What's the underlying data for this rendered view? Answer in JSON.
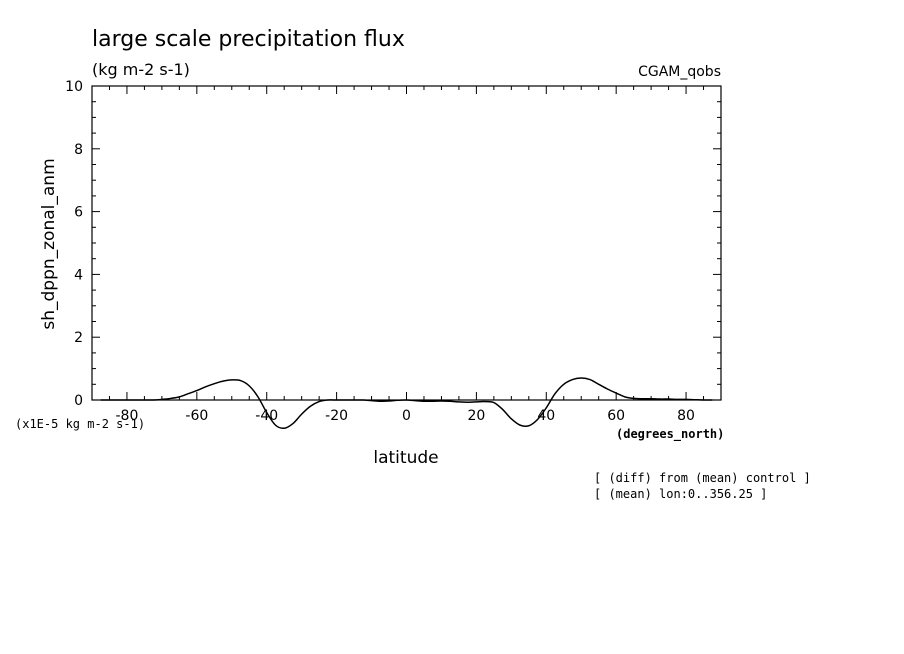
{
  "chart_data": {
    "type": "line",
    "title": "large scale precipitation flux",
    "subtitle": "(kg m-2 s-1)",
    "label_right": "CGAM_qobs",
    "xlabel": "latitude",
    "x_units": "(degrees_north)",
    "ylabel": "sh_dppn_zonal_anm",
    "y_scale_note": "(x1E-5 kg m-2 s-1)",
    "xlim": [
      -90,
      90
    ],
    "ylim": [
      0,
      10
    ],
    "x_ticks": [
      -80,
      -60,
      -40,
      -20,
      0,
      20,
      40,
      60,
      80
    ],
    "y_ticks": [
      0,
      2,
      4,
      6,
      8,
      10
    ],
    "grid": false,
    "notes": [
      "[ (diff) from (mean) control ]",
      "[ (mean) lon:0..356.25 ]"
    ],
    "series": [
      {
        "x": [
          -87.5,
          -82.5,
          -77.5,
          -72.5,
          -70,
          -67.5,
          -65,
          -62.5,
          -60,
          -57.5,
          -55,
          -52.5,
          -50,
          -47.5,
          -45,
          -42.5,
          -40,
          -37.5,
          -35,
          -32.5,
          -30,
          -27.5,
          -25,
          -22.5,
          -20,
          -17.5,
          -15,
          -12.5,
          -10,
          -7.5,
          -5,
          -2.5,
          0,
          2.5,
          5,
          7.5,
          10,
          12.5,
          15,
          17.5,
          20,
          22.5,
          25,
          27.5,
          30,
          32.5,
          35,
          37.5,
          40,
          42.5,
          45,
          47.5,
          50,
          52.5,
          55,
          57.5,
          60,
          62.5,
          65,
          67.5,
          70,
          72.5,
          75,
          77.5,
          80,
          82.5,
          85,
          87.5
        ],
        "y": [
          0,
          0,
          0,
          0,
          0.02,
          0.05,
          0.1,
          0.2,
          0.3,
          0.42,
          0.52,
          0.6,
          0.64,
          0.62,
          0.45,
          0.1,
          -0.4,
          -0.8,
          -0.9,
          -0.75,
          -0.45,
          -0.2,
          -0.05,
          0,
          0,
          0,
          0,
          0,
          -0.02,
          -0.04,
          -0.03,
          -0.01,
          0,
          -0.02,
          -0.04,
          -0.04,
          -0.03,
          -0.04,
          -0.06,
          -0.07,
          -0.06,
          -0.05,
          -0.08,
          -0.3,
          -0.6,
          -0.8,
          -0.82,
          -0.62,
          -0.25,
          0.2,
          0.5,
          0.65,
          0.7,
          0.65,
          0.5,
          0.35,
          0.22,
          0.1,
          0.05,
          0.04,
          0.04,
          0.03,
          0.03,
          0.02,
          0.02,
          0.01,
          0,
          0
        ]
      }
    ]
  }
}
